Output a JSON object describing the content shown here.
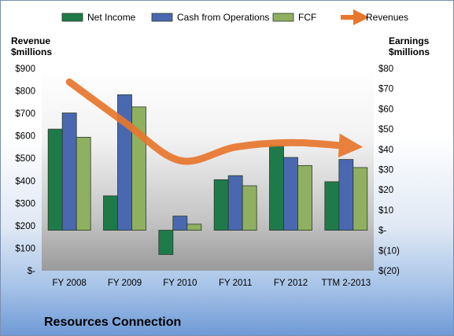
{
  "chart_data": {
    "type": "bar",
    "title": "Resources Connection",
    "categories": [
      "FY 2008",
      "FY 2009",
      "FY 2010",
      "FY 2011",
      "FY 2012",
      "TTM 2-2013"
    ],
    "left_axis": {
      "label_line1": "Revenue",
      "label_line2": "$millions",
      "ylim": [
        0,
        900
      ],
      "ticks": [
        0,
        100,
        200,
        300,
        400,
        500,
        600,
        700,
        800,
        900
      ],
      "tick_labels": [
        "$-",
        "$100",
        "$200",
        "$300",
        "$400",
        "$500",
        "$600",
        "$700",
        "$800",
        "$900"
      ]
    },
    "right_axis": {
      "label_line1": "Earnings",
      "label_line2": "$millions",
      "ylim": [
        -20,
        80
      ],
      "ticks": [
        -20,
        -10,
        0,
        10,
        20,
        30,
        40,
        50,
        60,
        70,
        80
      ],
      "tick_labels": [
        "$(20)",
        "$(10)",
        "$-",
        "$10",
        "$20",
        "$30",
        "$40",
        "$50",
        "$60",
        "$70",
        "$80"
      ]
    },
    "series": [
      {
        "name": "Net Income",
        "axis": "right",
        "kind": "bar",
        "color": "#1f7a4a",
        "values": [
          50,
          17,
          -12,
          25,
          42,
          24
        ]
      },
      {
        "name": "Cash from Operations",
        "axis": "right",
        "kind": "bar",
        "color": "#4a68b0",
        "values": [
          58,
          67,
          7,
          27,
          36,
          35
        ]
      },
      {
        "name": "FCF",
        "axis": "right",
        "kind": "bar",
        "color": "#8fb060",
        "values": [
          46,
          61,
          3,
          22,
          32,
          31
        ]
      },
      {
        "name": "Revenues",
        "axis": "left",
        "kind": "line",
        "color": "#e8772e",
        "values": [
          840,
          660,
          490,
          550,
          570,
          555
        ]
      }
    ],
    "legend_position": "top",
    "grid": false
  }
}
